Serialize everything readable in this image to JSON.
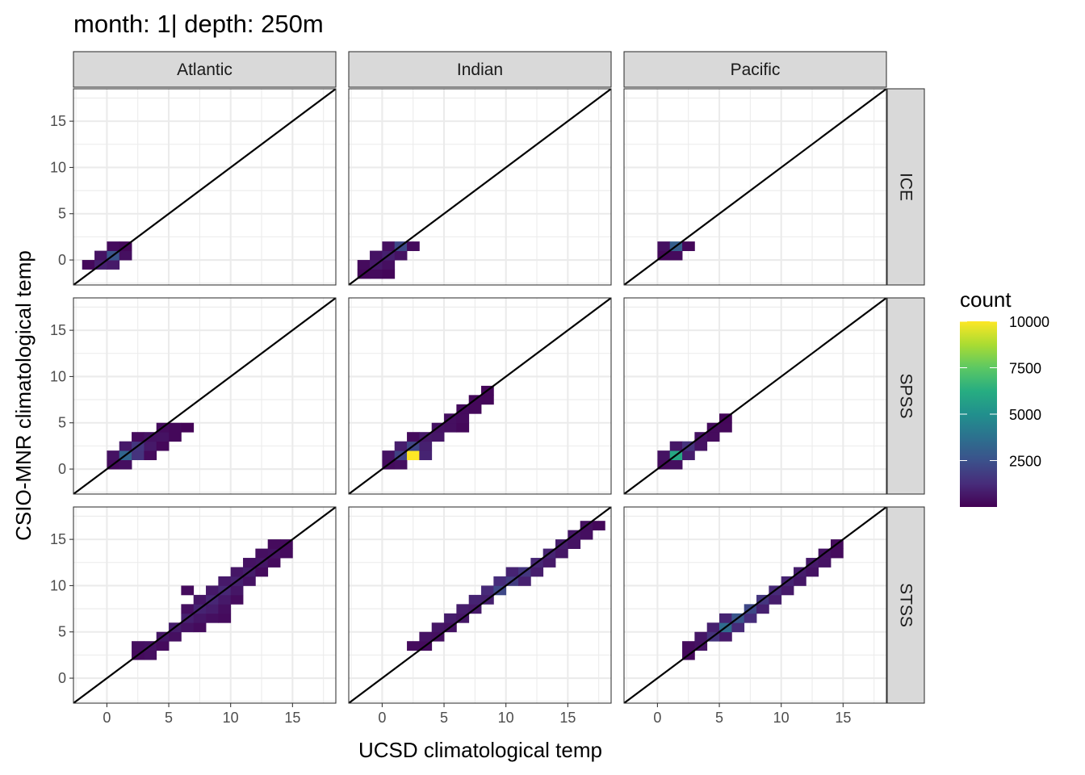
{
  "chart_data": {
    "type": "heatmap",
    "title": "month: 1| depth: 250m",
    "xlabel": "UCSD climatological temp",
    "ylabel": "CSIO-MNR climatological temp",
    "xlim": [
      -2.7,
      18.5
    ],
    "ylim": [
      -2.7,
      18.5
    ],
    "x_ticks": [
      0,
      5,
      10,
      15
    ],
    "y_ticks": [
      0,
      5,
      10,
      15
    ],
    "grid": true,
    "reference_line": "y = x",
    "bin_width": 1,
    "columns": [
      "Atlantic",
      "Indian",
      "Pacific"
    ],
    "rows": [
      "ICE",
      "SPSS",
      "STSS"
    ],
    "legend": {
      "title": "count",
      "position": "right",
      "colormap": [
        "#440154",
        "#472c7a",
        "#3b518b",
        "#2c718e",
        "#21908d",
        "#27ad81",
        "#5cc863",
        "#aadc32",
        "#fde725"
      ],
      "min": 0,
      "max": 10000,
      "breaks": [
        2500,
        5000,
        7500,
        10000
      ],
      "labels": [
        "2500",
        "5000",
        "7500",
        "10000"
      ]
    },
    "panels": [
      {
        "column": "Atlantic",
        "row": "ICE",
        "cells": [
          [
            -1.5,
            -0.5,
            200
          ],
          [
            -0.5,
            -0.5,
            900
          ],
          [
            0.5,
            -0.5,
            700
          ],
          [
            -0.5,
            0.5,
            500
          ],
          [
            0.5,
            0.5,
            2600
          ],
          [
            1.5,
            0.5,
            400
          ],
          [
            0.5,
            1.5,
            300
          ],
          [
            1.5,
            1.5,
            200
          ]
        ]
      },
      {
        "column": "Indian",
        "row": "ICE",
        "cells": [
          [
            -1.5,
            -1.5,
            150
          ],
          [
            -0.5,
            -1.5,
            250
          ],
          [
            0.5,
            -1.5,
            150
          ],
          [
            -1.5,
            -0.5,
            300
          ],
          [
            -0.5,
            -0.5,
            700
          ],
          [
            0.5,
            -0.5,
            400
          ],
          [
            -0.5,
            0.5,
            500
          ],
          [
            0.5,
            0.5,
            900
          ],
          [
            1.5,
            0.5,
            500
          ],
          [
            0.5,
            1.5,
            400
          ],
          [
            1.5,
            1.5,
            2200
          ],
          [
            2.5,
            1.5,
            300
          ]
        ]
      },
      {
        "column": "Pacific",
        "row": "ICE",
        "cells": [
          [
            0.5,
            0.5,
            200
          ],
          [
            1.5,
            0.5,
            300
          ],
          [
            0.5,
            1.5,
            400
          ],
          [
            1.5,
            1.5,
            3000
          ],
          [
            2.5,
            1.5,
            200
          ]
        ]
      },
      {
        "column": "Atlantic",
        "row": "SPSS",
        "cells": [
          [
            0.5,
            0.5,
            300
          ],
          [
            1.5,
            0.5,
            400
          ],
          [
            0.5,
            1.5,
            500
          ],
          [
            1.5,
            1.5,
            3300
          ],
          [
            2.5,
            1.5,
            1500
          ],
          [
            3.5,
            1.5,
            300
          ],
          [
            1.5,
            2.5,
            700
          ],
          [
            2.5,
            2.5,
            1600
          ],
          [
            3.5,
            2.5,
            700
          ],
          [
            4.5,
            2.5,
            200
          ],
          [
            2.5,
            3.5,
            300
          ],
          [
            3.5,
            3.5,
            500
          ],
          [
            4.5,
            3.5,
            500
          ],
          [
            5.5,
            3.5,
            200
          ],
          [
            4.5,
            4.5,
            300
          ],
          [
            5.5,
            4.5,
            200
          ],
          [
            6.5,
            4.5,
            100
          ]
        ]
      },
      {
        "column": "Indian",
        "row": "SPSS",
        "cells": [
          [
            0.5,
            0.5,
            300
          ],
          [
            1.5,
            0.5,
            400
          ],
          [
            0.5,
            1.5,
            500
          ],
          [
            1.5,
            1.5,
            2000
          ],
          [
            2.5,
            1.5,
            10000
          ],
          [
            3.5,
            1.5,
            1000
          ],
          [
            1.5,
            2.5,
            800
          ],
          [
            2.5,
            2.5,
            2100
          ],
          [
            3.5,
            2.5,
            900
          ],
          [
            2.5,
            3.5,
            300
          ],
          [
            3.5,
            3.5,
            700
          ],
          [
            4.5,
            3.5,
            600
          ],
          [
            4.5,
            4.5,
            500
          ],
          [
            5.5,
            4.5,
            400
          ],
          [
            6.5,
            4.5,
            200
          ],
          [
            5.5,
            5.5,
            400
          ],
          [
            6.5,
            5.5,
            300
          ],
          [
            6.5,
            6.5,
            300
          ],
          [
            7.5,
            6.5,
            200
          ],
          [
            7.5,
            7.5,
            200
          ],
          [
            8.5,
            7.5,
            150
          ],
          [
            8.5,
            8.5,
            150
          ]
        ]
      },
      {
        "column": "Pacific",
        "row": "SPSS",
        "cells": [
          [
            0.5,
            0.5,
            300
          ],
          [
            1.5,
            0.5,
            400
          ],
          [
            0.5,
            1.5,
            500
          ],
          [
            1.5,
            1.5,
            6000
          ],
          [
            2.5,
            1.5,
            800
          ],
          [
            1.5,
            2.5,
            600
          ],
          [
            2.5,
            2.5,
            1500
          ],
          [
            3.5,
            2.5,
            500
          ],
          [
            3.5,
            3.5,
            500
          ],
          [
            4.5,
            3.5,
            300
          ],
          [
            4.5,
            4.5,
            300
          ],
          [
            5.5,
            4.5,
            200
          ],
          [
            5.5,
            5.5,
            150
          ]
        ]
      },
      {
        "column": "Atlantic",
        "row": "STSS",
        "cells": [
          [
            2.5,
            2.5,
            300
          ],
          [
            3.5,
            2.5,
            400
          ],
          [
            2.5,
            3.5,
            400
          ],
          [
            3.5,
            3.5,
            500
          ],
          [
            4.5,
            3.5,
            300
          ],
          [
            4.5,
            4.5,
            600
          ],
          [
            5.5,
            4.5,
            400
          ],
          [
            5.5,
            5.5,
            800
          ],
          [
            6.5,
            5.5,
            500
          ],
          [
            7.5,
            5.5,
            300
          ],
          [
            6.5,
            6.5,
            900
          ],
          [
            7.5,
            6.5,
            600
          ],
          [
            8.5,
            6.5,
            400
          ],
          [
            9.5,
            6.5,
            300
          ],
          [
            6.5,
            7.5,
            400
          ],
          [
            7.5,
            7.5,
            1000
          ],
          [
            8.5,
            7.5,
            800
          ],
          [
            9.5,
            7.5,
            400
          ],
          [
            7.5,
            8.5,
            600
          ],
          [
            8.5,
            8.5,
            1100
          ],
          [
            9.5,
            8.5,
            700
          ],
          [
            10.5,
            8.5,
            300
          ],
          [
            6.5,
            9.5,
            300
          ],
          [
            8.5,
            9.5,
            700
          ],
          [
            9.5,
            9.5,
            1100
          ],
          [
            10.5,
            9.5,
            600
          ],
          [
            9.5,
            10.5,
            700
          ],
          [
            10.5,
            10.5,
            900
          ],
          [
            11.5,
            10.5,
            500
          ],
          [
            10.5,
            11.5,
            600
          ],
          [
            11.5,
            11.5,
            800
          ],
          [
            12.5,
            11.5,
            300
          ],
          [
            11.5,
            12.5,
            500
          ],
          [
            12.5,
            12.5,
            600
          ],
          [
            13.5,
            12.5,
            300
          ],
          [
            12.5,
            13.5,
            400
          ],
          [
            13.5,
            13.5,
            500
          ],
          [
            14.5,
            13.5,
            300
          ],
          [
            13.5,
            14.5,
            300
          ],
          [
            14.5,
            14.5,
            300
          ]
        ]
      },
      {
        "column": "Indian",
        "row": "STSS",
        "cells": [
          [
            2.5,
            3.5,
            300
          ],
          [
            3.5,
            3.5,
            300
          ],
          [
            3.5,
            4.5,
            500
          ],
          [
            4.5,
            4.5,
            400
          ],
          [
            4.5,
            5.5,
            600
          ],
          [
            5.5,
            5.5,
            500
          ],
          [
            5.5,
            6.5,
            800
          ],
          [
            6.5,
            6.5,
            600
          ],
          [
            6.5,
            7.5,
            800
          ],
          [
            7.5,
            7.5,
            700
          ],
          [
            7.5,
            8.5,
            1000
          ],
          [
            8.5,
            8.5,
            900
          ],
          [
            8.5,
            9.5,
            1200
          ],
          [
            9.5,
            9.5,
            2200
          ],
          [
            9.5,
            10.5,
            1300
          ],
          [
            10.5,
            10.5,
            1800
          ],
          [
            11.5,
            10.5,
            900
          ],
          [
            10.5,
            11.5,
            1000
          ],
          [
            11.5,
            11.5,
            1600
          ],
          [
            12.5,
            11.5,
            800
          ],
          [
            12.5,
            12.5,
            1100
          ],
          [
            13.5,
            12.5,
            700
          ],
          [
            13.5,
            13.5,
            1000
          ],
          [
            14.5,
            13.5,
            600
          ],
          [
            14.5,
            14.5,
            800
          ],
          [
            15.5,
            14.5,
            500
          ],
          [
            15.5,
            15.5,
            600
          ],
          [
            16.5,
            15.5,
            400
          ],
          [
            16.5,
            16.5,
            400
          ],
          [
            17.5,
            16.5,
            200
          ]
        ]
      },
      {
        "column": "Pacific",
        "row": "STSS",
        "cells": [
          [
            2.5,
            2.5,
            200
          ],
          [
            2.5,
            3.5,
            300
          ],
          [
            3.5,
            3.5,
            500
          ],
          [
            3.5,
            4.5,
            600
          ],
          [
            4.5,
            4.5,
            1500
          ],
          [
            5.5,
            4.5,
            700
          ],
          [
            4.5,
            5.5,
            900
          ],
          [
            5.5,
            5.5,
            3500
          ],
          [
            6.5,
            5.5,
            1200
          ],
          [
            5.5,
            6.5,
            1000
          ],
          [
            6.5,
            6.5,
            2700
          ],
          [
            7.5,
            6.5,
            1300
          ],
          [
            7.5,
            7.5,
            2200
          ],
          [
            8.5,
            7.5,
            900
          ],
          [
            8.5,
            8.5,
            1600
          ],
          [
            9.5,
            8.5,
            800
          ],
          [
            9.5,
            9.5,
            1200
          ],
          [
            10.5,
            9.5,
            700
          ],
          [
            10.5,
            10.5,
            1000
          ],
          [
            11.5,
            10.5,
            600
          ],
          [
            11.5,
            11.5,
            800
          ],
          [
            12.5,
            11.5,
            500
          ],
          [
            12.5,
            12.5,
            700
          ],
          [
            13.5,
            12.5,
            500
          ],
          [
            13.5,
            13.5,
            500
          ],
          [
            14.5,
            13.5,
            300
          ],
          [
            14.5,
            14.5,
            300
          ]
        ]
      }
    ]
  }
}
